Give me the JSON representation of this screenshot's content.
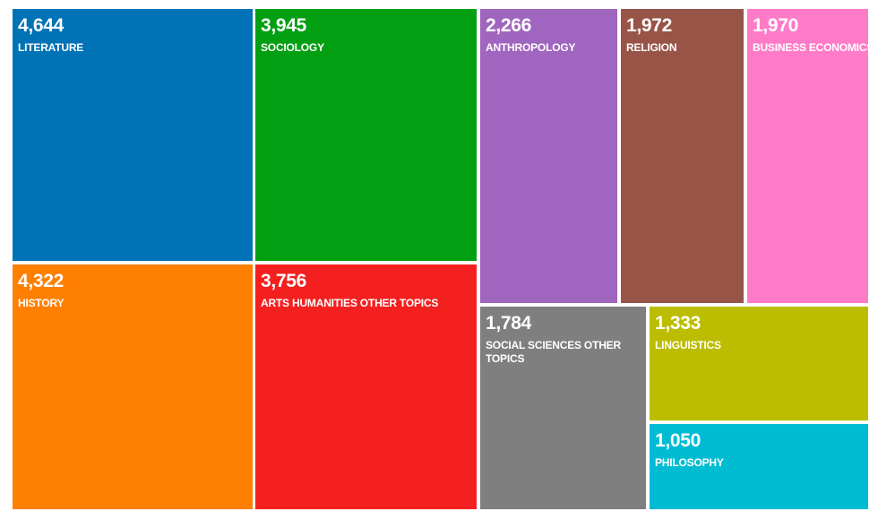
{
  "chart_data": {
    "type": "treemap",
    "items": [
      {
        "label": "LITERATURE",
        "value": 4644,
        "value_text": "4,644",
        "color": "#0072b6"
      },
      {
        "label": "HISTORY",
        "value": 4322,
        "value_text": "4,322",
        "color": "#ff7f00"
      },
      {
        "label": "SOCIOLOGY",
        "value": 3945,
        "value_text": "3,945",
        "color": "#029f12"
      },
      {
        "label": "ARTS HUMANITIES OTHER TOPICS",
        "value": 3756,
        "value_text": "3,756",
        "color": "#f42020"
      },
      {
        "label": "ANTHROPOLOGY",
        "value": 2266,
        "value_text": "2,266",
        "color": "#a065bf"
      },
      {
        "label": "RELIGION",
        "value": 1972,
        "value_text": "1,972",
        "color": "#985447"
      },
      {
        "label": "BUSINESS ECONOMICS",
        "value": 1970,
        "value_text": "1,970",
        "color": "#ff7bc8"
      },
      {
        "label": "SOCIAL SCIENCES OTHER TOPICS",
        "value": 1784,
        "value_text": "1,784",
        "color": "#7f7f7f"
      },
      {
        "label": "LINGUISTICS",
        "value": 1333,
        "value_text": "1,333",
        "color": "#bcbd00"
      },
      {
        "label": "PHILOSOPHY",
        "value": 1050,
        "value_text": "1,050",
        "color": "#00bcd2"
      }
    ]
  }
}
